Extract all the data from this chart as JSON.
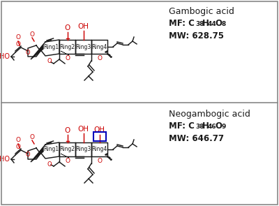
{
  "fig_width": 4.0,
  "fig_height": 2.95,
  "dpi": 100,
  "bg_color": "#ffffff",
  "panel1_name": "Gambogic acid",
  "panel1_mf": "MF: C",
  "panel1_mf_sub1": "38",
  "panel1_h": "H",
  "panel1_h_sub": "44",
  "panel1_o": "O",
  "panel1_o_sub": "8",
  "panel1_mw": "MW: 628.75",
  "panel2_name": "Neogambogic acid",
  "panel2_mf": "MF: C",
  "panel2_mf_sub1": "38",
  "panel2_h": "H",
  "panel2_h_sub": "46",
  "panel2_o": "O",
  "panel2_o_sub": "9",
  "panel2_mw": "MW: 646.77",
  "red": "#cc0000",
  "black": "#1a1a1a",
  "blue": "#0000bb",
  "border": "#888888",
  "text_fs": 8.5,
  "sub_fs": 6.5,
  "name_fs": 9.0,
  "ring_fs": 5.5
}
